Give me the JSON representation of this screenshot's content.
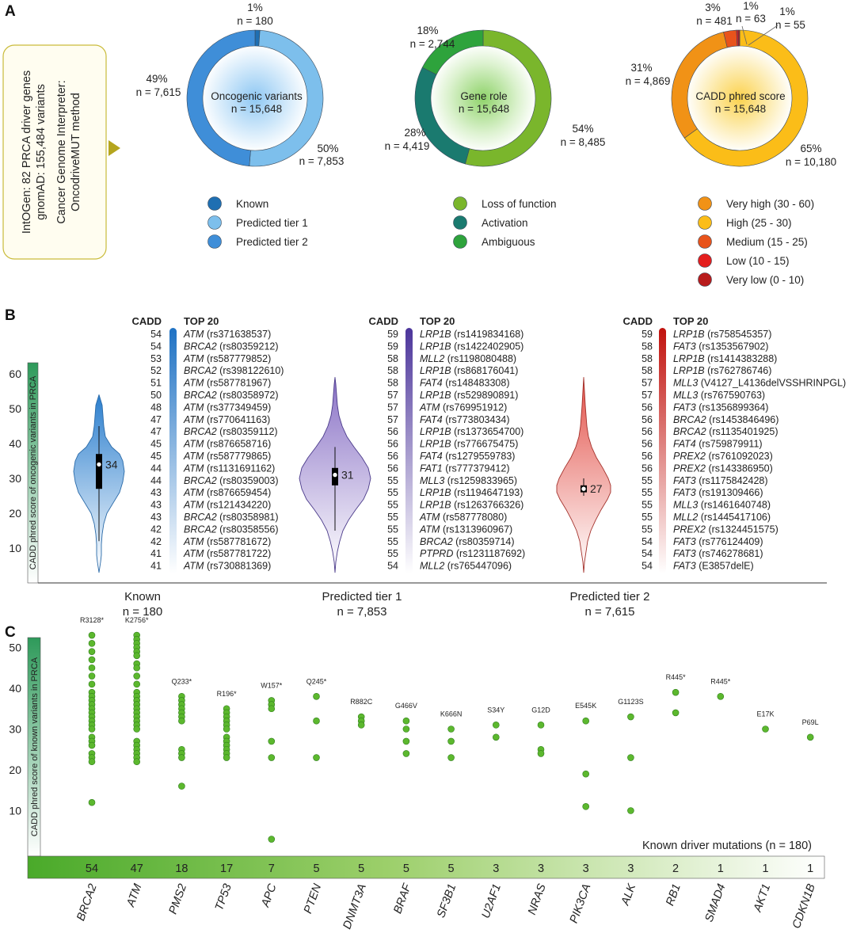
{
  "panels": {
    "a": "A",
    "b": "B",
    "c": "C"
  },
  "panel_a": {
    "source_box": {
      "line1": "IntOGen: 82 PRCA driver genes",
      "line2": "gnomAD: 155,484 variants",
      "line3": "Cancer Genome Interpreter:",
      "line4": "OncodriveMUT method"
    }
  },
  "panel_b": {
    "cadd_header": "CADD",
    "top_header": "TOP 20",
    "axis_label": "CADD phred score of oncogenic variants in PRCA"
  },
  "panel_c": {
    "axis_label": "CADD phred score of known variants in PRCA",
    "caption": "Known driver mutations (n = 180)"
  },
  "chart_data": [
    {
      "id": "A1",
      "type": "pie",
      "title": "Oncogenic variants",
      "total": "n = 15,648",
      "labels": [
        "Known",
        "Predicted tier 1",
        "Predicted tier 2"
      ],
      "values": [
        180,
        7853,
        7615
      ],
      "colors": [
        "#1f6fb2",
        "#7dbfec",
        "#3f8ed8"
      ],
      "slice_labels": [
        {
          "pct": "1%",
          "n": "n = 180"
        },
        {
          "pct": "50%",
          "n": "n = 7,853"
        },
        {
          "pct": "49%",
          "n": "n = 7,615"
        }
      ]
    },
    {
      "id": "A2",
      "type": "pie",
      "title": "Gene role",
      "total": "n = 15,648",
      "labels": [
        "Loss of function",
        "Activation",
        "Ambiguous"
      ],
      "values": [
        8485,
        4419,
        2744
      ],
      "colors": [
        "#7ab62c",
        "#1a7a6f",
        "#2ea33c"
      ],
      "slice_labels": [
        {
          "pct": "54%",
          "n": "n = 8,485"
        },
        {
          "pct": "28%",
          "n": "n = 4,419"
        },
        {
          "pct": "18%",
          "n": "n = 2,744"
        }
      ]
    },
    {
      "id": "A3",
      "type": "pie",
      "title": "CADD phred score",
      "total": "n = 15,648",
      "labels": [
        "Very high (30 - 60)",
        "High (25 - 30)",
        "Medium (15 - 25)",
        "Low (10 - 15)",
        "Very low (0 - 10)"
      ],
      "values": [
        4869,
        10180,
        481,
        63,
        55
      ],
      "draw_order": [
        1,
        0,
        2,
        3,
        4
      ],
      "colors": [
        "#f19216",
        "#fbbd18",
        "#e8531b",
        "#e41e1e",
        "#b81c1c"
      ],
      "slice_labels": [
        {
          "pct": "31%",
          "n": "n = 4,869"
        },
        {
          "pct": "65%",
          "n": "n = 10,180"
        },
        {
          "pct": "3%",
          "n": "n = 481"
        },
        {
          "pct": "1%",
          "n": "n = 63"
        },
        {
          "pct": "1%",
          "n": "n = 55"
        }
      ]
    },
    {
      "id": "B",
      "type": "violin",
      "ylabel": "CADD phred score of oncogenic variants in PRCA",
      "ylim": [
        0,
        62
      ],
      "yticks": [
        10,
        20,
        30,
        40,
        50,
        60
      ],
      "groups": [
        {
          "name": "Known",
          "n": "n = 180",
          "median": 34,
          "q1": 27,
          "q3": 37,
          "whisker_low": 12,
          "whisker_high": 45,
          "min": 3,
          "max": 54,
          "color": "#2c7fce",
          "top20": [
            {
              "cadd": 54,
              "gene": "ATM",
              "variant": "(rs371638537)"
            },
            {
              "cadd": 54,
              "gene": "BRCA2",
              "variant": "(rs80359212)"
            },
            {
              "cadd": 53,
              "gene": "ATM",
              "variant": "(rs587779852)"
            },
            {
              "cadd": 52,
              "gene": "BRCA2",
              "variant": "(rs398122610)"
            },
            {
              "cadd": 51,
              "gene": "ATM",
              "variant": "(rs587781967)"
            },
            {
              "cadd": 50,
              "gene": "BRCA2",
              "variant": "(rs80358972)"
            },
            {
              "cadd": 48,
              "gene": "ATM",
              "variant": "(rs377349459)"
            },
            {
              "cadd": 47,
              "gene": "ATM",
              "variant": "(rs770641163)"
            },
            {
              "cadd": 47,
              "gene": "BRCA2",
              "variant": "(rs80359112)"
            },
            {
              "cadd": 45,
              "gene": "ATM",
              "variant": "(rs876658716)"
            },
            {
              "cadd": 45,
              "gene": "ATM",
              "variant": "(rs587779865)"
            },
            {
              "cadd": 44,
              "gene": "ATM",
              "variant": "(rs1131691162)"
            },
            {
              "cadd": 44,
              "gene": "BRCA2",
              "variant": "(rs80359003)"
            },
            {
              "cadd": 43,
              "gene": "ATM",
              "variant": "(rs876659454)"
            },
            {
              "cadd": 43,
              "gene": "ATM",
              "variant": "(rs121434220)"
            },
            {
              "cadd": 43,
              "gene": "BRCA2",
              "variant": "(rs80358981)"
            },
            {
              "cadd": 42,
              "gene": "BRCA2",
              "variant": "(rs80358556)"
            },
            {
              "cadd": 42,
              "gene": "ATM",
              "variant": "(rs587781672)"
            },
            {
              "cadd": 41,
              "gene": "ATM",
              "variant": "(rs587781722)"
            },
            {
              "cadd": 41,
              "gene": "ATM",
              "variant": "(rs730881369)"
            }
          ]
        },
        {
          "name": "Predicted tier 1",
          "n": "n = 7,853",
          "median": 31,
          "q1": 28,
          "q3": 33,
          "whisker_low": 15,
          "whisker_high": 39,
          "min": 3,
          "max": 59,
          "color": "#5a3f9e",
          "top20": [
            {
              "cadd": 59,
              "gene": "LRP1B",
              "variant": "(rs1419834168)"
            },
            {
              "cadd": 59,
              "gene": "LRP1B",
              "variant": "(rs1422402905)"
            },
            {
              "cadd": 58,
              "gene": "MLL2",
              "variant": "(rs1198080488)"
            },
            {
              "cadd": 58,
              "gene": "LRP1B",
              "variant": "(rs868176041)"
            },
            {
              "cadd": 58,
              "gene": "FAT4",
              "variant": "(rs148483308)"
            },
            {
              "cadd": 57,
              "gene": "LRP1B",
              "variant": "(rs529890891)"
            },
            {
              "cadd": 57,
              "gene": "ATM",
              "variant": "(rs769951912)"
            },
            {
              "cadd": 57,
              "gene": "FAT4",
              "variant": "(rs773803434)"
            },
            {
              "cadd": 56,
              "gene": "LRP1B",
              "variant": "(rs1373654700)"
            },
            {
              "cadd": 56,
              "gene": "LRP1B",
              "variant": "(rs776675475)"
            },
            {
              "cadd": 56,
              "gene": "FAT4",
              "variant": "(rs1279559783)"
            },
            {
              "cadd": 56,
              "gene": "FAT1",
              "variant": "(rs777379412)"
            },
            {
              "cadd": 55,
              "gene": "MLL3",
              "variant": "(rs1259833965)"
            },
            {
              "cadd": 55,
              "gene": "LRP1B",
              "variant": "(rs1194647193)"
            },
            {
              "cadd": 55,
              "gene": "LRP1B",
              "variant": "(rs1263766326)"
            },
            {
              "cadd": 55,
              "gene": "ATM",
              "variant": "(rs587778080)"
            },
            {
              "cadd": 55,
              "gene": "ATM",
              "variant": "(rs1313960967)"
            },
            {
              "cadd": 55,
              "gene": "BRCA2",
              "variant": "(rs80359714)"
            },
            {
              "cadd": 55,
              "gene": "PTPRD",
              "variant": "(rs1231187692)"
            },
            {
              "cadd": 54,
              "gene": "MLL2",
              "variant": "(rs765447096)"
            }
          ]
        },
        {
          "name": "Predicted tier 2",
          "n": "n = 7,615",
          "median": 27,
          "q1": 26,
          "q3": 28,
          "whisker_low": 25,
          "whisker_high": 30,
          "min": 3,
          "max": 59,
          "color": "#c9221b",
          "top20": [
            {
              "cadd": 59,
              "gene": "LRP1B",
              "variant": "(rs758545357)"
            },
            {
              "cadd": 58,
              "gene": "FAT3",
              "variant": "(rs1353567902)"
            },
            {
              "cadd": 58,
              "gene": "LRP1B",
              "variant": "(rs1414383288)"
            },
            {
              "cadd": 58,
              "gene": "LRP1B",
              "variant": "(rs762786746)"
            },
            {
              "cadd": 57,
              "gene": "MLL3",
              "variant": "(V4127_L4136delVSSHRINPGL)"
            },
            {
              "cadd": 57,
              "gene": "MLL3",
              "variant": "(rs767590763)"
            },
            {
              "cadd": 56,
              "gene": "FAT3",
              "variant": "(rs1356899364)"
            },
            {
              "cadd": 56,
              "gene": "BRCA2",
              "variant": "(rs1453846496)"
            },
            {
              "cadd": 56,
              "gene": "BRCA2",
              "variant": "(rs1135401925)"
            },
            {
              "cadd": 56,
              "gene": "FAT4",
              "variant": "(rs759879911)"
            },
            {
              "cadd": 56,
              "gene": "PREX2",
              "variant": "(rs761092023)"
            },
            {
              "cadd": 56,
              "gene": "PREX2",
              "variant": "(rs143386950)"
            },
            {
              "cadd": 55,
              "gene": "FAT3",
              "variant": "(rs1175842428)"
            },
            {
              "cadd": 55,
              "gene": "FAT3",
              "variant": "(rs191309466)"
            },
            {
              "cadd": 55,
              "gene": "MLL3",
              "variant": "(rs1461640748)"
            },
            {
              "cadd": 55,
              "gene": "MLL2",
              "variant": "(rs1445417106)"
            },
            {
              "cadd": 55,
              "gene": "PREX2",
              "variant": "(rs1324451575)"
            },
            {
              "cadd": 54,
              "gene": "FAT3",
              "variant": "(rs776124409)"
            },
            {
              "cadd": 54,
              "gene": "FAT3",
              "variant": "(rs746278681)"
            },
            {
              "cadd": 54,
              "gene": "FAT3",
              "variant": "(E3857delE)"
            }
          ]
        }
      ]
    },
    {
      "id": "C",
      "type": "scatter",
      "ylabel": "CADD phred score of known variants in PRCA",
      "ylim": [
        0,
        56
      ],
      "yticks": [
        10,
        20,
        30,
        40,
        50
      ],
      "genes": [
        {
          "gene": "BRCA2",
          "count": 54,
          "top_mutation": "R3128*",
          "scores": [
            53,
            51,
            49,
            47,
            45,
            43,
            41,
            39,
            38,
            37,
            36,
            35,
            34,
            33,
            32,
            31,
            30,
            28,
            27,
            26,
            24,
            23,
            22,
            12
          ]
        },
        {
          "gene": "ATM",
          "count": 47,
          "top_mutation": "K2756*",
          "scores": [
            53,
            52,
            51,
            50,
            49,
            48,
            46,
            45,
            43,
            41,
            39,
            38,
            37,
            36,
            35,
            34,
            33,
            32,
            31,
            30,
            27,
            26,
            25,
            24,
            23,
            22
          ]
        },
        {
          "gene": "PMS2",
          "count": 18,
          "top_mutation": "Q233*",
          "scores": [
            38,
            37,
            36,
            35,
            34,
            33,
            32,
            25,
            24,
            23,
            16
          ]
        },
        {
          "gene": "TP53",
          "count": 17,
          "top_mutation": "R196*",
          "scores": [
            35,
            34,
            33,
            32,
            31,
            30,
            28,
            27,
            26,
            25,
            24,
            23
          ]
        },
        {
          "gene": "APC",
          "count": 7,
          "top_mutation": "W157*",
          "scores": [
            37,
            36,
            35,
            27,
            23,
            3
          ]
        },
        {
          "gene": "PTEN",
          "count": 5,
          "top_mutation": "Q245*",
          "scores": [
            38,
            32,
            23
          ]
        },
        {
          "gene": "DNMT3A",
          "count": 5,
          "top_mutation": "R882C",
          "scores": [
            33,
            32,
            31
          ]
        },
        {
          "gene": "BRAF",
          "count": 5,
          "top_mutation": "G466V",
          "scores": [
            32,
            30,
            27,
            24
          ]
        },
        {
          "gene": "SF3B1",
          "count": 5,
          "top_mutation": "K666N",
          "scores": [
            30,
            27,
            23
          ]
        },
        {
          "gene": "U2AF1",
          "count": 3,
          "top_mutation": "S34Y",
          "scores": [
            31,
            28
          ]
        },
        {
          "gene": "NRAS",
          "count": 3,
          "top_mutation": "G12D",
          "scores": [
            31,
            25,
            24
          ]
        },
        {
          "gene": "PIK3CA",
          "count": 3,
          "top_mutation": "E545K",
          "scores": [
            32,
            19,
            11
          ]
        },
        {
          "gene": "ALK",
          "count": 3,
          "top_mutation": "G1123S",
          "scores": [
            33,
            23,
            10
          ]
        },
        {
          "gene": "RB1",
          "count": 2,
          "top_mutation": "R445*",
          "scores": [
            39,
            34
          ]
        },
        {
          "gene": "SMAD4",
          "count": 1,
          "top_mutation": "R445*",
          "scores": [
            38
          ]
        },
        {
          "gene": "AKT1",
          "count": 1,
          "top_mutation": "E17K",
          "scores": [
            30
          ]
        },
        {
          "gene": "CDKN1B",
          "count": 1,
          "top_mutation": "P69L",
          "scores": [
            28
          ]
        }
      ],
      "point_color": "#5cb82e"
    }
  ]
}
